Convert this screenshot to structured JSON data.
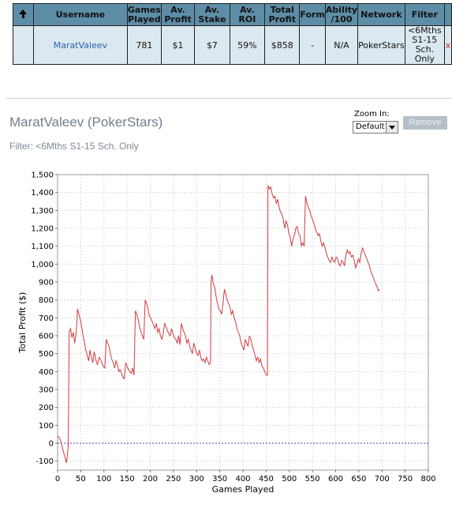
{
  "table": {
    "headers": [
      "Username",
      "Games Played",
      "Av. Profit",
      "Av. Stake",
      "Av. ROI",
      "Total Profit",
      "Form",
      "Ability /100",
      "Network",
      "Filter"
    ],
    "row": {
      "username": "MaratValeev",
      "games_played": "781",
      "av_profit": "$1",
      "av_stake": "$7",
      "av_roi": "59%",
      "total_profit": "$858",
      "form": "-",
      "ability": "N/A",
      "network": "PokerStars",
      "filter": "<6Mths S1-15 Sch. Only",
      "remove": "x"
    }
  },
  "chart_header": {
    "title": "MaratValeev (PokerStars)",
    "filter": "Filter: <6Mths S1-15 Sch. Only",
    "zoom_label": "Zoom In:",
    "zoom_value": "Default",
    "remove_label": "Remove"
  },
  "chart_data": {
    "type": "line",
    "xlabel": "Games Played",
    "ylabel": "Total Profit ($)",
    "xlim": [
      0,
      800
    ],
    "ylim": [
      -150,
      1500
    ],
    "x_ticks": [
      0,
      50,
      100,
      150,
      200,
      250,
      300,
      350,
      400,
      450,
      500,
      550,
      600,
      650,
      700,
      750,
      800
    ],
    "y_ticks": [
      -100,
      0,
      100,
      200,
      300,
      400,
      500,
      600,
      700,
      800,
      900,
      1000,
      1100,
      1200,
      1300,
      1400,
      1500
    ],
    "y_tick_labels": [
      "-100",
      "0",
      "100",
      "200",
      "300",
      "400",
      "500",
      "600",
      "700",
      "800",
      "900",
      "1,000",
      "1,100",
      "1,200",
      "1,300",
      "1,400",
      "1,500"
    ],
    "grid": true,
    "zero_line": true,
    "line_color": "#d23a3a",
    "zero_line_color": "#3c3cbf",
    "series": [
      {
        "points": [
          [
            0,
            40
          ],
          [
            4,
            30
          ],
          [
            8,
            0
          ],
          [
            12,
            -40
          ],
          [
            16,
            -80
          ],
          [
            19,
            -110
          ],
          [
            21,
            -70
          ],
          [
            23,
            -20
          ],
          [
            25,
            620
          ],
          [
            28,
            640
          ],
          [
            31,
            590
          ],
          [
            34,
            620
          ],
          [
            37,
            560
          ],
          [
            40,
            610
          ],
          [
            43,
            750
          ],
          [
            46,
            720
          ],
          [
            49,
            690
          ],
          [
            52,
            650
          ],
          [
            55,
            600
          ],
          [
            58,
            560
          ],
          [
            61,
            520
          ],
          [
            64,
            490
          ],
          [
            67,
            460
          ],
          [
            70,
            520
          ],
          [
            73,
            480
          ],
          [
            76,
            450
          ],
          [
            79,
            510
          ],
          [
            82,
            470
          ],
          [
            86,
            440
          ],
          [
            90,
            480
          ],
          [
            94,
            460
          ],
          [
            98,
            430
          ],
          [
            102,
            420
          ],
          [
            105,
            580
          ],
          [
            108,
            560
          ],
          [
            111,
            540
          ],
          [
            114,
            500
          ],
          [
            117,
            470
          ],
          [
            120,
            450
          ],
          [
            123,
            420
          ],
          [
            126,
            460
          ],
          [
            129,
            440
          ],
          [
            132,
            400
          ],
          [
            135,
            410
          ],
          [
            138,
            390
          ],
          [
            141,
            370
          ],
          [
            144,
            360
          ],
          [
            147,
            450
          ],
          [
            150,
            430
          ],
          [
            153,
            410
          ],
          [
            156,
            400
          ],
          [
            159,
            390
          ],
          [
            162,
            420
          ],
          [
            165,
            380
          ],
          [
            168,
            740
          ],
          [
            171,
            720
          ],
          [
            174,
            690
          ],
          [
            177,
            650
          ],
          [
            180,
            620
          ],
          [
            183,
            600
          ],
          [
            186,
            580
          ],
          [
            189,
            800
          ],
          [
            192,
            780
          ],
          [
            195,
            750
          ],
          [
            198,
            710
          ],
          [
            201,
            700
          ],
          [
            204,
            680
          ],
          [
            207,
            660
          ],
          [
            210,
            640
          ],
          [
            213,
            670
          ],
          [
            216,
            620
          ],
          [
            219,
            640
          ],
          [
            222,
            600
          ],
          [
            225,
            580
          ],
          [
            228,
            610
          ],
          [
            231,
            670
          ],
          [
            234,
            650
          ],
          [
            237,
            630
          ],
          [
            240,
            610
          ],
          [
            243,
            600
          ],
          [
            246,
            640
          ],
          [
            249,
            610
          ],
          [
            252,
            590
          ],
          [
            255,
            580
          ],
          [
            258,
            560
          ],
          [
            261,
            600
          ],
          [
            264,
            550
          ],
          [
            267,
            670
          ],
          [
            270,
            640
          ],
          [
            273,
            620
          ],
          [
            276,
            600
          ],
          [
            279,
            560
          ],
          [
            282,
            580
          ],
          [
            285,
            540
          ],
          [
            288,
            520
          ],
          [
            291,
            500
          ],
          [
            294,
            560
          ],
          [
            297,
            530
          ],
          [
            300,
            500
          ],
          [
            303,
            490
          ],
          [
            306,
            520
          ],
          [
            309,
            480
          ],
          [
            312,
            460
          ],
          [
            315,
            470
          ],
          [
            318,
            450
          ],
          [
            321,
            480
          ],
          [
            324,
            460
          ],
          [
            327,
            440
          ],
          [
            330,
            450
          ],
          [
            331,
            900
          ],
          [
            333,
            940
          ],
          [
            336,
            890
          ],
          [
            339,
            870
          ],
          [
            342,
            820
          ],
          [
            345,
            780
          ],
          [
            348,
            750
          ],
          [
            351,
            740
          ],
          [
            354,
            720
          ],
          [
            357,
            780
          ],
          [
            360,
            860
          ],
          [
            363,
            830
          ],
          [
            366,
            800
          ],
          [
            369,
            780
          ],
          [
            372,
            760
          ],
          [
            375,
            720
          ],
          [
            378,
            740
          ],
          [
            381,
            700
          ],
          [
            384,
            680
          ],
          [
            387,
            640
          ],
          [
            390,
            620
          ],
          [
            393,
            600
          ],
          [
            396,
            560
          ],
          [
            399,
            540
          ],
          [
            402,
            520
          ],
          [
            405,
            580
          ],
          [
            408,
            560
          ],
          [
            411,
            540
          ],
          [
            414,
            600
          ],
          [
            417,
            580
          ],
          [
            420,
            540
          ],
          [
            423,
            520
          ],
          [
            426,
            490
          ],
          [
            429,
            460
          ],
          [
            432,
            480
          ],
          [
            435,
            450
          ],
          [
            438,
            470
          ],
          [
            441,
            430
          ],
          [
            444,
            420
          ],
          [
            447,
            400
          ],
          [
            449,
            390
          ],
          [
            450,
            380
          ],
          [
            453,
            380
          ],
          [
            454,
            1440
          ],
          [
            457,
            1420
          ],
          [
            460,
            1430
          ],
          [
            463,
            1390
          ],
          [
            466,
            1370
          ],
          [
            469,
            1380
          ],
          [
            472,
            1340
          ],
          [
            475,
            1360
          ],
          [
            478,
            1320
          ],
          [
            481,
            1290
          ],
          [
            484,
            1280
          ],
          [
            487,
            1250
          ],
          [
            490,
            1200
          ],
          [
            493,
            1240
          ],
          [
            496,
            1220
          ],
          [
            499,
            1170
          ],
          [
            502,
            1150
          ],
          [
            505,
            1100
          ],
          [
            508,
            1140
          ],
          [
            511,
            1160
          ],
          [
            514,
            1200
          ],
          [
            517,
            1210
          ],
          [
            520,
            1170
          ],
          [
            523,
            1160
          ],
          [
            526,
            1100
          ],
          [
            529,
            1120
          ],
          [
            532,
            1100
          ],
          [
            535,
            1380
          ],
          [
            538,
            1340
          ],
          [
            541,
            1320
          ],
          [
            544,
            1300
          ],
          [
            547,
            1270
          ],
          [
            550,
            1250
          ],
          [
            553,
            1230
          ],
          [
            556,
            1200
          ],
          [
            559,
            1180
          ],
          [
            562,
            1160
          ],
          [
            565,
            1170
          ],
          [
            568,
            1130
          ],
          [
            571,
            1100
          ],
          [
            574,
            1120
          ],
          [
            577,
            1090
          ],
          [
            580,
            1060
          ],
          [
            583,
            1040
          ],
          [
            586,
            1020
          ],
          [
            589,
            1010
          ],
          [
            592,
            1040
          ],
          [
            595,
            1020
          ],
          [
            598,
            1010
          ],
          [
            601,
            1040
          ],
          [
            604,
            1030
          ],
          [
            607,
            1000
          ],
          [
            610,
            990
          ],
          [
            613,
            1020
          ],
          [
            616,
            1010
          ],
          [
            619,
            990
          ],
          [
            622,
            1050
          ],
          [
            625,
            1080
          ],
          [
            628,
            1060
          ],
          [
            631,
            1070
          ],
          [
            634,
            1040
          ],
          [
            637,
            1050
          ],
          [
            640,
            1020
          ],
          [
            643,
            980
          ],
          [
            646,
            1000
          ],
          [
            649,
            1030
          ],
          [
            652,
            1010
          ],
          [
            655,
            1060
          ],
          [
            658,
            1090
          ],
          [
            661,
            1070
          ],
          [
            664,
            1050
          ],
          [
            667,
            1030
          ],
          [
            670,
            1010
          ],
          [
            673,
            990
          ],
          [
            676,
            960
          ],
          [
            679,
            940
          ],
          [
            682,
            920
          ],
          [
            685,
            900
          ],
          [
            688,
            880
          ],
          [
            690,
            870
          ],
          [
            692,
            850
          ],
          [
            695,
            860
          ]
        ]
      }
    ]
  }
}
